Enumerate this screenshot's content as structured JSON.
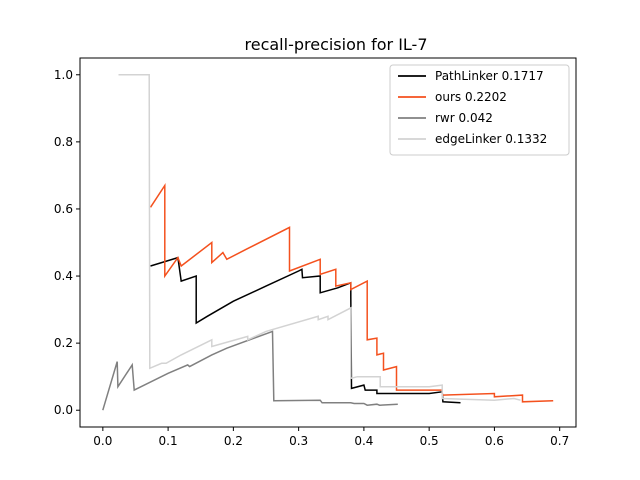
{
  "chart_data": {
    "type": "line",
    "title": "recall-precision for IL-7",
    "xlabel": "",
    "ylabel": "",
    "xlim": [
      -0.035,
      0.725
    ],
    "ylim": [
      -0.05,
      1.05
    ],
    "xticks": [
      "0.0",
      "0.1",
      "0.2",
      "0.3",
      "0.4",
      "0.5",
      "0.6",
      "0.7"
    ],
    "yticks": [
      "0.0",
      "0.2",
      "0.4",
      "0.6",
      "0.8",
      "1.0"
    ],
    "grid": false,
    "legend_position": "top-right",
    "series": [
      {
        "name": "PathLinker 0.1717",
        "color": "#000000",
        "points": [
          [
            0.073,
            0.43
          ],
          [
            0.115,
            0.455
          ],
          [
            0.12,
            0.385
          ],
          [
            0.143,
            0.4
          ],
          [
            0.143,
            0.26
          ],
          [
            0.16,
            0.28
          ],
          [
            0.2,
            0.325
          ],
          [
            0.25,
            0.37
          ],
          [
            0.3,
            0.415
          ],
          [
            0.305,
            0.42
          ],
          [
            0.306,
            0.395
          ],
          [
            0.333,
            0.4
          ],
          [
            0.333,
            0.35
          ],
          [
            0.36,
            0.365
          ],
          [
            0.38,
            0.38
          ],
          [
            0.38,
            0.34
          ],
          [
            0.381,
            0.065
          ],
          [
            0.4,
            0.075
          ],
          [
            0.402,
            0.06
          ],
          [
            0.42,
            0.06
          ],
          [
            0.42,
            0.05
          ],
          [
            0.5,
            0.05
          ],
          [
            0.52,
            0.055
          ],
          [
            0.521,
            0.025
          ],
          [
            0.548,
            0.022
          ]
        ]
      },
      {
        "name": "ours 0.2202",
        "color": "#f4511e",
        "points": [
          [
            0.073,
            0.605
          ],
          [
            0.095,
            0.67
          ],
          [
            0.095,
            0.4
          ],
          [
            0.115,
            0.455
          ],
          [
            0.12,
            0.43
          ],
          [
            0.167,
            0.5
          ],
          [
            0.167,
            0.44
          ],
          [
            0.184,
            0.47
          ],
          [
            0.19,
            0.45
          ],
          [
            0.22,
            0.48
          ],
          [
            0.286,
            0.545
          ],
          [
            0.286,
            0.415
          ],
          [
            0.333,
            0.45
          ],
          [
            0.333,
            0.405
          ],
          [
            0.357,
            0.42
          ],
          [
            0.357,
            0.37
          ],
          [
            0.38,
            0.38
          ],
          [
            0.38,
            0.36
          ],
          [
            0.405,
            0.385
          ],
          [
            0.405,
            0.21
          ],
          [
            0.42,
            0.215
          ],
          [
            0.42,
            0.165
          ],
          [
            0.43,
            0.17
          ],
          [
            0.43,
            0.12
          ],
          [
            0.45,
            0.13
          ],
          [
            0.45,
            0.06
          ],
          [
            0.52,
            0.06
          ],
          [
            0.52,
            0.045
          ],
          [
            0.6,
            0.05
          ],
          [
            0.6,
            0.04
          ],
          [
            0.643,
            0.045
          ],
          [
            0.643,
            0.025
          ],
          [
            0.69,
            0.028
          ]
        ]
      },
      {
        "name": "rwr 0.042",
        "color": "#808080",
        "points": [
          [
            0.0,
            0.0
          ],
          [
            0.022,
            0.145
          ],
          [
            0.023,
            0.07
          ],
          [
            0.045,
            0.135
          ],
          [
            0.048,
            0.06
          ],
          [
            0.1,
            0.11
          ],
          [
            0.13,
            0.135
          ],
          [
            0.133,
            0.13
          ],
          [
            0.167,
            0.165
          ],
          [
            0.19,
            0.185
          ],
          [
            0.26,
            0.235
          ],
          [
            0.262,
            0.028
          ],
          [
            0.333,
            0.03
          ],
          [
            0.336,
            0.022
          ],
          [
            0.38,
            0.022
          ],
          [
            0.385,
            0.02
          ],
          [
            0.4,
            0.02
          ],
          [
            0.405,
            0.015
          ],
          [
            0.42,
            0.018
          ],
          [
            0.424,
            0.015
          ],
          [
            0.452,
            0.018
          ]
        ]
      },
      {
        "name": "edgeLinker 0.1332",
        "color": "#d3d3d3",
        "points": [
          [
            0.024,
            1.0
          ],
          [
            0.071,
            1.0
          ],
          [
            0.072,
            0.125
          ],
          [
            0.09,
            0.14
          ],
          [
            0.097,
            0.14
          ],
          [
            0.12,
            0.165
          ],
          [
            0.167,
            0.21
          ],
          [
            0.167,
            0.19
          ],
          [
            0.222,
            0.22
          ],
          [
            0.222,
            0.21
          ],
          [
            0.25,
            0.235
          ],
          [
            0.33,
            0.28
          ],
          [
            0.33,
            0.27
          ],
          [
            0.345,
            0.28
          ],
          [
            0.345,
            0.27
          ],
          [
            0.38,
            0.305
          ],
          [
            0.38,
            0.095
          ],
          [
            0.39,
            0.1
          ],
          [
            0.425,
            0.1
          ],
          [
            0.425,
            0.07
          ],
          [
            0.5,
            0.07
          ],
          [
            0.52,
            0.075
          ],
          [
            0.52,
            0.035
          ],
          [
            0.6,
            0.03
          ],
          [
            0.63,
            0.035
          ],
          [
            0.64,
            0.03
          ]
        ]
      }
    ]
  }
}
